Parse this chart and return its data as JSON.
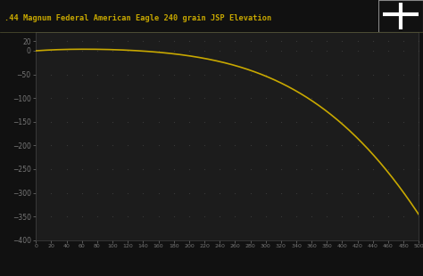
{
  "title": ".44 Magnum Federal American Eagle 240 grain JSP Elevation",
  "bg_color": "#111111",
  "plot_bg_color": "#1c1c1c",
  "line_color": "#c8a800",
  "title_color": "#c8a800",
  "title_bg_color": "#111111",
  "tick_color": "#777777",
  "dot_color": "#3a3a3a",
  "xlim": [
    0,
    500
  ],
  "ylim": [
    -400,
    40
  ],
  "xticks": [
    0,
    20,
    40,
    60,
    80,
    100,
    120,
    140,
    160,
    180,
    200,
    220,
    240,
    260,
    280,
    300,
    320,
    340,
    360,
    380,
    400,
    420,
    440,
    460,
    480,
    500
  ],
  "yticks": [
    20,
    0,
    -50,
    -100,
    -150,
    -200,
    -250,
    -300,
    -350,
    -400
  ],
  "x_ctrl": [
    0,
    25,
    50,
    75,
    100,
    125,
    150,
    175,
    200,
    225,
    250,
    275,
    300,
    325,
    350,
    375,
    400,
    425,
    450,
    475,
    500
  ],
  "y_ctrl": [
    0.0,
    1.8,
    2.8,
    2.9,
    2.2,
    0.8,
    -1.8,
    -5.5,
    -10.8,
    -17.8,
    -27.0,
    -39.0,
    -54.0,
    -72.5,
    -95.0,
    -122.0,
    -154.0,
    -192.0,
    -238.0,
    -290.0,
    -345.0
  ]
}
